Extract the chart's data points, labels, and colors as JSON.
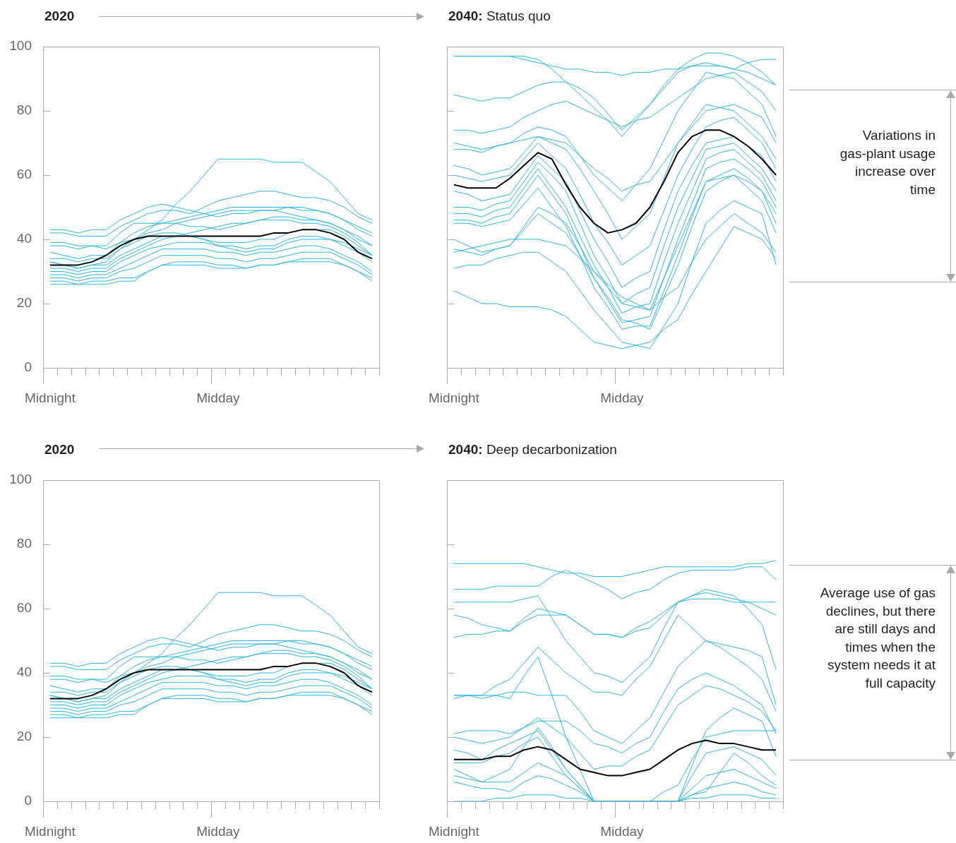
{
  "chart_data": [
    {
      "type": "line",
      "title": "2020",
      "categories": [
        "Midnight",
        null,
        null,
        null,
        null,
        null,
        null,
        null,
        null,
        null,
        null,
        null,
        "Midday",
        null,
        null,
        null,
        null,
        null,
        null,
        null,
        null,
        null,
        null,
        null
      ],
      "ylim": [
        0,
        100
      ],
      "yticks": [
        0,
        20,
        40,
        60,
        80,
        100
      ],
      "series": [
        {
          "color": "#29b5e8",
          "values": [
            33,
            32,
            31,
            32,
            33,
            37,
            40,
            43,
            46,
            51,
            55,
            60,
            65,
            65,
            65,
            65,
            64,
            64,
            64,
            61,
            58,
            53,
            48,
            46
          ]
        },
        {
          "color": "#29b5e8",
          "values": [
            43,
            43,
            42,
            43,
            43,
            46,
            48,
            50,
            51,
            50,
            49,
            48,
            47,
            48,
            48,
            49,
            49,
            50,
            50,
            49,
            48,
            46,
            44,
            42
          ]
        },
        {
          "color": "#29b5e8",
          "values": [
            42,
            42,
            41,
            41,
            41,
            44,
            46,
            48,
            49,
            49,
            48,
            50,
            52,
            53,
            54,
            55,
            55,
            54,
            53,
            53,
            52,
            50,
            47,
            45
          ]
        },
        {
          "color": "#29b5e8",
          "values": [
            38,
            38,
            37,
            38,
            38,
            42,
            45,
            45,
            45,
            46,
            47,
            48,
            49,
            50,
            50,
            50,
            50,
            50,
            49,
            49,
            48,
            46,
            43,
            41
          ]
        },
        {
          "color": "#29b5e8",
          "values": [
            36,
            35,
            34,
            35,
            35,
            39,
            42,
            44,
            45,
            45,
            44,
            44,
            43,
            44,
            45,
            46,
            47,
            47,
            46,
            46,
            45,
            43,
            40,
            38
          ]
        },
        {
          "color": "#29b5e8",
          "values": [
            34,
            34,
            33,
            34,
            34,
            37,
            39,
            41,
            42,
            42,
            41,
            40,
            38,
            38,
            37,
            38,
            38,
            40,
            41,
            41,
            40,
            39,
            37,
            35
          ]
        },
        {
          "color": "#29b5e8",
          "values": [
            30,
            30,
            29,
            30,
            30,
            33,
            35,
            37,
            38,
            39,
            39,
            39,
            38,
            37,
            36,
            37,
            37,
            39,
            40,
            40,
            40,
            38,
            36,
            33
          ]
        },
        {
          "color": "#29b5e8",
          "values": [
            29,
            29,
            28,
            29,
            29,
            31,
            33,
            35,
            37,
            37,
            37,
            37,
            36,
            36,
            35,
            36,
            36,
            37,
            38,
            38,
            37,
            35,
            33,
            30
          ]
        },
        {
          "color": "#29b5e8",
          "values": [
            28,
            28,
            27,
            28,
            28,
            30,
            31,
            33,
            35,
            35,
            35,
            35,
            34,
            34,
            33,
            34,
            34,
            35,
            36,
            36,
            36,
            34,
            32,
            29
          ]
        },
        {
          "color": "#29b5e8",
          "values": [
            27,
            27,
            26,
            27,
            27,
            28,
            28,
            30,
            32,
            33,
            33,
            33,
            32,
            32,
            31,
            32,
            32,
            33,
            33,
            33,
            33,
            32,
            30,
            27
          ]
        },
        {
          "color": "#29b5e8",
          "values": [
            31,
            31,
            30,
            31,
            31,
            34,
            36,
            38,
            40,
            41,
            42,
            43,
            44,
            45,
            45,
            46,
            46,
            46,
            45,
            45,
            44,
            42,
            39,
            35
          ]
        },
        {
          "color": "#29b5e8",
          "values": [
            39,
            39,
            38,
            38,
            37,
            39,
            40,
            42,
            43,
            45,
            46,
            47,
            48,
            49,
            49,
            49,
            49,
            48,
            47,
            46,
            45,
            43,
            41,
            38
          ]
        },
        {
          "color": "#29b5e8",
          "values": [
            33,
            32,
            31,
            32,
            32,
            35,
            37,
            39,
            41,
            41,
            41,
            40,
            39,
            39,
            39,
            40,
            40,
            42,
            43,
            43,
            43,
            41,
            38,
            35
          ]
        },
        {
          "color": "#29b5e8",
          "values": [
            26,
            26,
            26,
            26,
            26,
            27,
            27,
            30,
            32,
            32,
            32,
            32,
            31,
            31,
            31,
            32,
            32,
            33,
            34,
            34,
            34,
            32,
            30,
            28
          ]
        },
        {
          "color": "#000000",
          "values": [
            32,
            32,
            32,
            33,
            35,
            38,
            40,
            41,
            41,
            41,
            41,
            41,
            41,
            41,
            41,
            41,
            42,
            42,
            43,
            43,
            42,
            40,
            36,
            34
          ]
        }
      ]
    },
    {
      "type": "line",
      "title": "2040: Status quo",
      "tick_labels": "x",
      "annotations": [
        "Variations in gas-plant usage increase over time"
      ],
      "categories": [
        "Midnight",
        null,
        null,
        null,
        null,
        null,
        null,
        null,
        null,
        null,
        null,
        null,
        "Midday",
        null,
        null,
        null,
        null,
        null,
        null,
        null,
        null,
        null,
        null,
        null
      ],
      "ylim": [
        0,
        100
      ],
      "yticks": [
        0,
        20,
        40,
        60,
        80,
        100
      ],
      "series": [
        {
          "color": "#29b5e8",
          "values": [
            97,
            97,
            97,
            97,
            97,
            96,
            95,
            94,
            93,
            93,
            92,
            92,
            91,
            92,
            92,
            93,
            93,
            94,
            94,
            94,
            93,
            95,
            96,
            96
          ]
        },
        {
          "color": "#29b5e8",
          "values": [
            97,
            97,
            97,
            97,
            97,
            97,
            96,
            93,
            89,
            85,
            81,
            77,
            72,
            77,
            82,
            88,
            93,
            96,
            98,
            98,
            97,
            95,
            92,
            88
          ]
        },
        {
          "color": "#29b5e8",
          "values": [
            85,
            84,
            83,
            84,
            84,
            86,
            88,
            89,
            89,
            87,
            84,
            79,
            74,
            78,
            82,
            87,
            92,
            94,
            95,
            94,
            93,
            92,
            90,
            88
          ]
        },
        {
          "color": "#29b5e8",
          "values": [
            74,
            74,
            73,
            74,
            75,
            78,
            80,
            82,
            83,
            81,
            79,
            77,
            75,
            77,
            78,
            81,
            84,
            87,
            90,
            91,
            92,
            89,
            86,
            80
          ]
        },
        {
          "color": "#29b5e8",
          "values": [
            68,
            68,
            67,
            69,
            70,
            73,
            75,
            74,
            72,
            66,
            60,
            56,
            52,
            57,
            62,
            71,
            80,
            86,
            92,
            91,
            90,
            86,
            82,
            72
          ]
        },
        {
          "color": "#29b5e8",
          "values": [
            63,
            62,
            60,
            61,
            62,
            67,
            72,
            70,
            68,
            62,
            55,
            48,
            40,
            44,
            48,
            59,
            70,
            76,
            82,
            81,
            80,
            76,
            72,
            65
          ]
        },
        {
          "color": "#29b5e8",
          "values": [
            60,
            59,
            58,
            59,
            60,
            65,
            70,
            66,
            62,
            54,
            45,
            39,
            32,
            35,
            38,
            49,
            60,
            68,
            75,
            77,
            78,
            74,
            70,
            62
          ]
        },
        {
          "color": "#29b5e8",
          "values": [
            55,
            54,
            52,
            53,
            54,
            60,
            66,
            62,
            58,
            49,
            40,
            33,
            25,
            28,
            30,
            43,
            55,
            63,
            70,
            71,
            72,
            69,
            66,
            58
          ]
        },
        {
          "color": "#29b5e8",
          "values": [
            50,
            50,
            49,
            51,
            52,
            58,
            64,
            60,
            55,
            45,
            35,
            28,
            20,
            23,
            25,
            38,
            50,
            59,
            68,
            69,
            70,
            66,
            62,
            55
          ]
        },
        {
          "color": "#29b5e8",
          "values": [
            48,
            48,
            47,
            49,
            50,
            56,
            62,
            56,
            50,
            41,
            32,
            25,
            17,
            19,
            20,
            33,
            45,
            55,
            65,
            67,
            68,
            64,
            60,
            52
          ]
        },
        {
          "color": "#29b5e8",
          "values": [
            46,
            46,
            45,
            47,
            48,
            54,
            60,
            54,
            48,
            38,
            28,
            21,
            14,
            15,
            16,
            28,
            40,
            51,
            62,
            64,
            65,
            62,
            58,
            50
          ]
        },
        {
          "color": "#29b5e8",
          "values": [
            45,
            45,
            44,
            45,
            46,
            51,
            56,
            50,
            44,
            35,
            25,
            19,
            12,
            13,
            13,
            24,
            35,
            47,
            58,
            60,
            62,
            59,
            55,
            48
          ]
        },
        {
          "color": "#29b5e8",
          "values": [
            40,
            38,
            36,
            37,
            38,
            44,
            50,
            48,
            45,
            38,
            30,
            25,
            20,
            19,
            18,
            28,
            38,
            48,
            58,
            59,
            60,
            58,
            55,
            45
          ]
        },
        {
          "color": "#29b5e8",
          "values": [
            37,
            36,
            35,
            37,
            38,
            43,
            48,
            45,
            42,
            35,
            28,
            22,
            15,
            14,
            12,
            22,
            32,
            44,
            55,
            58,
            60,
            56,
            52,
            42
          ]
        },
        {
          "color": "#29b5e8",
          "values": [
            31,
            32,
            32,
            34,
            35,
            36,
            36,
            33,
            30,
            24,
            18,
            13,
            8,
            7,
            6,
            13,
            20,
            33,
            45,
            49,
            52,
            50,
            48,
            32
          ]
        },
        {
          "color": "#29b5e8",
          "values": [
            24,
            22,
            20,
            20,
            19,
            19,
            19,
            18,
            16,
            12,
            8,
            7,
            6,
            7,
            8,
            12,
            15,
            23,
            30,
            37,
            44,
            42,
            40,
            34
          ]
        },
        {
          "color": "#29b5e8",
          "values": [
            36,
            37,
            38,
            39,
            40,
            40,
            40,
            39,
            38,
            34,
            30,
            26,
            22,
            20,
            18,
            22,
            25,
            33,
            40,
            44,
            48,
            45,
            42,
            36
          ]
        },
        {
          "color": "#29b5e8",
          "values": [
            70,
            69,
            68,
            69,
            70,
            71,
            72,
            71,
            70,
            66,
            62,
            59,
            55,
            57,
            58,
            64,
            70,
            75,
            80,
            81,
            82,
            80,
            78,
            70
          ]
        },
        {
          "color": "#000000",
          "values": [
            57,
            56,
            56,
            56,
            59,
            63,
            67,
            65,
            57,
            50,
            45,
            42,
            43,
            45,
            50,
            58,
            67,
            72,
            74,
            74,
            72,
            69,
            65,
            60
          ]
        }
      ]
    },
    {
      "type": "line",
      "title": "2020",
      "categories": [
        "Midnight",
        null,
        null,
        null,
        null,
        null,
        null,
        null,
        null,
        null,
        null,
        null,
        "Midday",
        null,
        null,
        null,
        null,
        null,
        null,
        null,
        null,
        null,
        null,
        null
      ],
      "ylim": [
        0,
        100
      ],
      "yticks": [
        0,
        20,
        40,
        60,
        80,
        100
      ],
      "series": [
        {
          "color": "#29b5e8",
          "values": [
            33,
            32,
            31,
            32,
            33,
            37,
            40,
            43,
            46,
            51,
            55,
            60,
            65,
            65,
            65,
            65,
            64,
            64,
            64,
            61,
            58,
            53,
            48,
            46
          ]
        },
        {
          "color": "#29b5e8",
          "values": [
            43,
            43,
            42,
            43,
            43,
            46,
            48,
            50,
            51,
            50,
            49,
            48,
            47,
            48,
            48,
            49,
            49,
            50,
            50,
            49,
            48,
            46,
            44,
            42
          ]
        },
        {
          "color": "#29b5e8",
          "values": [
            42,
            42,
            41,
            41,
            41,
            44,
            46,
            48,
            49,
            49,
            48,
            50,
            52,
            53,
            54,
            55,
            55,
            54,
            53,
            53,
            52,
            50,
            47,
            45
          ]
        },
        {
          "color": "#29b5e8",
          "values": [
            38,
            38,
            37,
            38,
            38,
            42,
            45,
            45,
            45,
            46,
            47,
            48,
            49,
            50,
            50,
            50,
            50,
            50,
            49,
            49,
            48,
            46,
            43,
            41
          ]
        },
        {
          "color": "#29b5e8",
          "values": [
            36,
            35,
            34,
            35,
            35,
            39,
            42,
            44,
            45,
            45,
            44,
            44,
            43,
            44,
            45,
            46,
            47,
            47,
            46,
            46,
            45,
            43,
            40,
            38
          ]
        },
        {
          "color": "#29b5e8",
          "values": [
            34,
            34,
            33,
            34,
            34,
            37,
            39,
            41,
            42,
            42,
            41,
            40,
            38,
            38,
            37,
            38,
            38,
            40,
            41,
            41,
            40,
            39,
            37,
            35
          ]
        },
        {
          "color": "#29b5e8",
          "values": [
            30,
            30,
            29,
            30,
            30,
            33,
            35,
            37,
            38,
            39,
            39,
            39,
            38,
            37,
            36,
            37,
            37,
            39,
            40,
            40,
            40,
            38,
            36,
            33
          ]
        },
        {
          "color": "#29b5e8",
          "values": [
            29,
            29,
            28,
            29,
            29,
            31,
            33,
            35,
            37,
            37,
            37,
            37,
            36,
            36,
            35,
            36,
            36,
            37,
            38,
            38,
            37,
            35,
            33,
            30
          ]
        },
        {
          "color": "#29b5e8",
          "values": [
            28,
            28,
            27,
            28,
            28,
            30,
            31,
            33,
            35,
            35,
            35,
            35,
            34,
            34,
            33,
            34,
            34,
            35,
            36,
            36,
            36,
            34,
            32,
            29
          ]
        },
        {
          "color": "#29b5e8",
          "values": [
            27,
            27,
            26,
            27,
            27,
            28,
            28,
            30,
            32,
            33,
            33,
            33,
            32,
            32,
            31,
            32,
            32,
            33,
            33,
            33,
            33,
            32,
            30,
            27
          ]
        },
        {
          "color": "#29b5e8",
          "values": [
            31,
            31,
            30,
            31,
            31,
            34,
            36,
            38,
            40,
            41,
            42,
            43,
            44,
            45,
            45,
            46,
            46,
            46,
            45,
            45,
            44,
            42,
            39,
            35
          ]
        },
        {
          "color": "#29b5e8",
          "values": [
            39,
            39,
            38,
            38,
            37,
            39,
            40,
            42,
            43,
            45,
            46,
            47,
            48,
            49,
            49,
            49,
            49,
            48,
            47,
            46,
            45,
            43,
            41,
            38
          ]
        },
        {
          "color": "#29b5e8",
          "values": [
            33,
            32,
            31,
            32,
            32,
            35,
            37,
            39,
            41,
            41,
            41,
            40,
            39,
            39,
            39,
            40,
            40,
            42,
            43,
            43,
            43,
            41,
            38,
            35
          ]
        },
        {
          "color": "#29b5e8",
          "values": [
            26,
            26,
            26,
            26,
            26,
            27,
            27,
            30,
            32,
            32,
            32,
            32,
            31,
            31,
            31,
            32,
            32,
            33,
            34,
            34,
            34,
            32,
            30,
            28
          ]
        },
        {
          "color": "#000000",
          "values": [
            32,
            32,
            32,
            33,
            35,
            38,
            40,
            41,
            41,
            41,
            41,
            41,
            41,
            41,
            41,
            41,
            42,
            42,
            43,
            43,
            42,
            40,
            36,
            34
          ]
        }
      ]
    },
    {
      "type": "line",
      "title": "2040: Deep decarbonization",
      "tick_labels": "x",
      "annotations": [
        "Average use of gas declines, but there are still days and times when the system needs it at full capacity"
      ],
      "categories": [
        "Midnight",
        null,
        null,
        null,
        null,
        null,
        null,
        null,
        null,
        null,
        null,
        null,
        "Midday",
        null,
        null,
        null,
        null,
        null,
        null,
        null,
        null,
        null,
        null,
        null
      ],
      "ylim": [
        0,
        100
      ],
      "yticks": [
        0,
        20,
        40,
        60,
        80,
        100
      ],
      "series": [
        {
          "color": "#29b5e8",
          "values": [
            74,
            74,
            74,
            74,
            74,
            74,
            73,
            72,
            71,
            71,
            70,
            70,
            70,
            71,
            72,
            73,
            73,
            73,
            73,
            73,
            73,
            74,
            74,
            75
          ]
        },
        {
          "color": "#29b5e8",
          "values": [
            66,
            66,
            66,
            67,
            67,
            67,
            67,
            70,
            72,
            70,
            68,
            66,
            63,
            65,
            66,
            69,
            71,
            72,
            72,
            72,
            72,
            73,
            73,
            69
          ]
        },
        {
          "color": "#29b5e8",
          "values": [
            62,
            62,
            62,
            62,
            62,
            63,
            64,
            57,
            50,
            45,
            40,
            39,
            37,
            41,
            45,
            54,
            62,
            63,
            63,
            63,
            62,
            62,
            62,
            62
          ]
        },
        {
          "color": "#29b5e8",
          "values": [
            58,
            57,
            55,
            54,
            53,
            57,
            60,
            59,
            58,
            55,
            52,
            52,
            51,
            53,
            54,
            58,
            62,
            64,
            65,
            64,
            63,
            62,
            60,
            58
          ]
        },
        {
          "color": "#29b5e8",
          "values": [
            51,
            52,
            52,
            53,
            53,
            56,
            58,
            58,
            58,
            55,
            52,
            52,
            51,
            54,
            56,
            59,
            62,
            64,
            66,
            65,
            64,
            60,
            55,
            41
          ]
        },
        {
          "color": "#29b5e8",
          "values": [
            33,
            33,
            33,
            36,
            38,
            43,
            48,
            44,
            40,
            37,
            34,
            34,
            33,
            38,
            42,
            50,
            58,
            54,
            50,
            49,
            48,
            47,
            45,
            30
          ]
        },
        {
          "color": "#29b5e8",
          "values": [
            33,
            33,
            32,
            33,
            34,
            34,
            33,
            33,
            33,
            28,
            22,
            20,
            18,
            22,
            26,
            34,
            42,
            46,
            50,
            48,
            45,
            42,
            38,
            28
          ]
        },
        {
          "color": "#29b5e8",
          "values": [
            21,
            22,
            22,
            22,
            21,
            23,
            25,
            25,
            25,
            22,
            18,
            17,
            15,
            18,
            20,
            28,
            35,
            38,
            40,
            38,
            36,
            33,
            30,
            21
          ]
        },
        {
          "color": "#29b5e8",
          "values": [
            20,
            19,
            18,
            19,
            20,
            23,
            26,
            23,
            20,
            15,
            10,
            11,
            11,
            14,
            16,
            23,
            30,
            33,
            36,
            35,
            33,
            31,
            28,
            22
          ]
        },
        {
          "color": "#29b5e8",
          "values": [
            16,
            15,
            13,
            16,
            18,
            20,
            22,
            16,
            10,
            5,
            0,
            0,
            0,
            0,
            0,
            3,
            5,
            13,
            20,
            21,
            22,
            22,
            22,
            22
          ]
        },
        {
          "color": "#29b5e8",
          "values": [
            12,
            12,
            12,
            14,
            15,
            18,
            20,
            14,
            8,
            4,
            0,
            0,
            0,
            0,
            0,
            0,
            0,
            8,
            15,
            16,
            17,
            15,
            13,
            8
          ]
        },
        {
          "color": "#29b5e8",
          "values": [
            8,
            7,
            6,
            6,
            6,
            9,
            12,
            10,
            8,
            4,
            0,
            0,
            0,
            0,
            0,
            0,
            0,
            4,
            8,
            9,
            10,
            8,
            6,
            4
          ]
        },
        {
          "color": "#29b5e8",
          "values": [
            6,
            5,
            4,
            4,
            3,
            6,
            8,
            7,
            5,
            3,
            0,
            0,
            0,
            0,
            0,
            0,
            0,
            2,
            4,
            5,
            6,
            5,
            3,
            2
          ]
        },
        {
          "color": "#29b5e8",
          "values": [
            0,
            0,
            0,
            1,
            1,
            2,
            2,
            2,
            1,
            1,
            0,
            0,
            0,
            0,
            0,
            0,
            0,
            1,
            1,
            2,
            2,
            2,
            1,
            1
          ]
        },
        {
          "color": "#29b5e8",
          "values": [
            32,
            33,
            33,
            33,
            32,
            39,
            45,
            33,
            20,
            10,
            0,
            0,
            0,
            0,
            0,
            0,
            0,
            11,
            22,
            26,
            29,
            27,
            25,
            14
          ]
        },
        {
          "color": "#29b5e8",
          "values": [
            10,
            8,
            6,
            8,
            10,
            17,
            23,
            17,
            10,
            5,
            0,
            0,
            0,
            0,
            0,
            0,
            0,
            2,
            3,
            9,
            15,
            12,
            8,
            5
          ]
        },
        {
          "color": "#000000",
          "values": [
            13,
            13,
            13,
            14,
            14,
            16,
            17,
            16,
            13,
            10,
            9,
            8,
            8,
            9,
            10,
            13,
            16,
            18,
            19,
            18,
            18,
            17,
            16,
            16
          ]
        }
      ]
    }
  ]
}
